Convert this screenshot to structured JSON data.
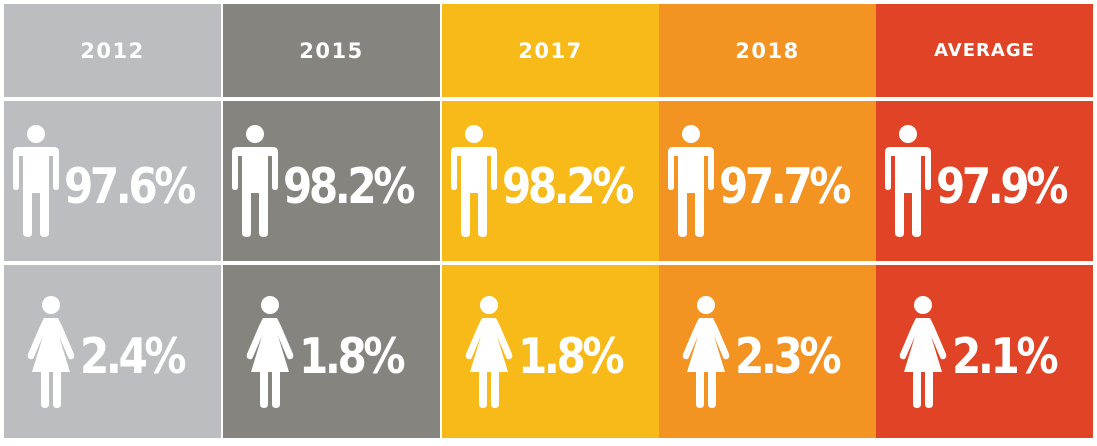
{
  "chart_data": {
    "type": "table",
    "categories": [
      "2012",
      "2015",
      "2017",
      "2018",
      "AVERAGE"
    ],
    "series": [
      {
        "icon": "male-icon",
        "values": [
          97.6,
          98.2,
          98.2,
          97.7,
          97.9
        ],
        "labels": [
          "97.6%",
          "98.2%",
          "98.2%",
          "97.7%",
          "97.9%"
        ]
      },
      {
        "icon": "female-icon",
        "values": [
          2.4,
          1.8,
          1.8,
          2.3,
          2.1
        ],
        "labels": [
          "2.4%",
          "1.8%",
          "1.8%",
          "2.3%",
          "2.1%"
        ]
      }
    ],
    "colors": [
      "#bcbdc0",
      "#86847f",
      "#f8ba18",
      "#f29322",
      "#e04326"
    ]
  }
}
